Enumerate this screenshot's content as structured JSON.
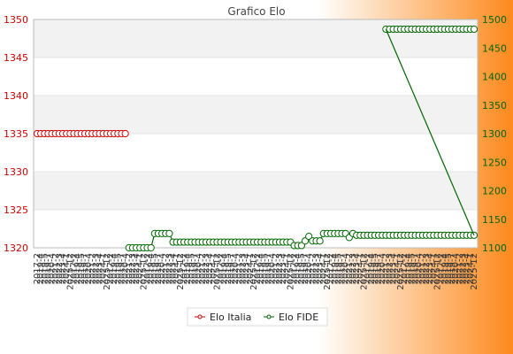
{
  "colors": {
    "bg_left": "#ffffff",
    "bg_right": "#fd8a1d",
    "band": "#f2f2f2",
    "grid": "#e4e4e4",
    "italia": "#cc0000",
    "fide": "#006600",
    "axis_text_left": "#cc0000",
    "axis_text_right": "#006600",
    "title": "#444444"
  },
  "chart_data": {
    "type": "line",
    "title": "Grafico Elo",
    "left_axis": {
      "ylim": [
        1320,
        1350
      ],
      "ticks": [
        1320,
        1325,
        1330,
        1335,
        1340,
        1345,
        1350
      ]
    },
    "right_axis": {
      "ylim": [
        1100,
        1500
      ],
      "ticks": [
        1100,
        1150,
        1200,
        1250,
        1300,
        1350,
        1400,
        1450,
        1500
      ]
    },
    "grid": true,
    "legend_position": "bottom",
    "n_points": 120,
    "x_tick_labels_visible": [
      "2017-2",
      "2019-4",
      "2019-5",
      "2019-7",
      "2020-4",
      "2021-2",
      "2022-3",
      "2023-4",
      "2024-1",
      "2025-12"
    ],
    "series": [
      {
        "name": "Elo Italia",
        "axis": "left",
        "x_start": 0,
        "values": [
          1335,
          1335,
          1335,
          1335,
          1335,
          1335,
          1335,
          1335,
          1335,
          1335,
          1335,
          1335,
          1335,
          1335,
          1335,
          1335,
          1335,
          1335,
          1335,
          1335,
          1335,
          1335,
          1335,
          1335,
          1335
        ]
      },
      {
        "name": "Elo FIDE",
        "axis": "right",
        "x_start": 25,
        "values": [
          1100,
          1100,
          1100,
          1100,
          1100,
          1100,
          1100,
          1125,
          1125,
          1125,
          1125,
          1125,
          1110,
          1110,
          1110,
          1110,
          1110,
          1110,
          1110,
          1110,
          1110,
          1110,
          1110,
          1110,
          1110,
          1110,
          1110,
          1110,
          1110,
          1110,
          1110,
          1110,
          1110,
          1110,
          1110,
          1110,
          1110,
          1110,
          1110,
          1110,
          1110,
          1110,
          1110,
          1110,
          1110,
          1104,
          1104,
          1104,
          1112,
          1120,
          1112,
          1112,
          1112,
          1125,
          1125,
          1125,
          1125,
          1125,
          1125,
          1125,
          1118,
          1125,
          1122,
          1122,
          1122,
          1122,
          1122,
          1122,
          1122,
          1122,
          1122,
          1122,
          1122,
          1122,
          1122,
          1122,
          1122,
          1122,
          1122,
          1122,
          1122,
          1122,
          1122,
          1122,
          1122,
          1122,
          1122,
          1122,
          1122,
          1122,
          1122,
          1122,
          1122,
          1122,
          1122
        ]
      },
      {
        "name": "",
        "axis": "right",
        "x_start": 95,
        "values": [
          1483,
          1483,
          1483,
          1483,
          1483,
          1483,
          1483,
          1483,
          1483,
          1483,
          1483,
          1483,
          1483,
          1483,
          1483,
          1483,
          1483,
          1483,
          1483,
          1483,
          1483,
          1483,
          1483,
          1483,
          1483
        ]
      }
    ]
  }
}
